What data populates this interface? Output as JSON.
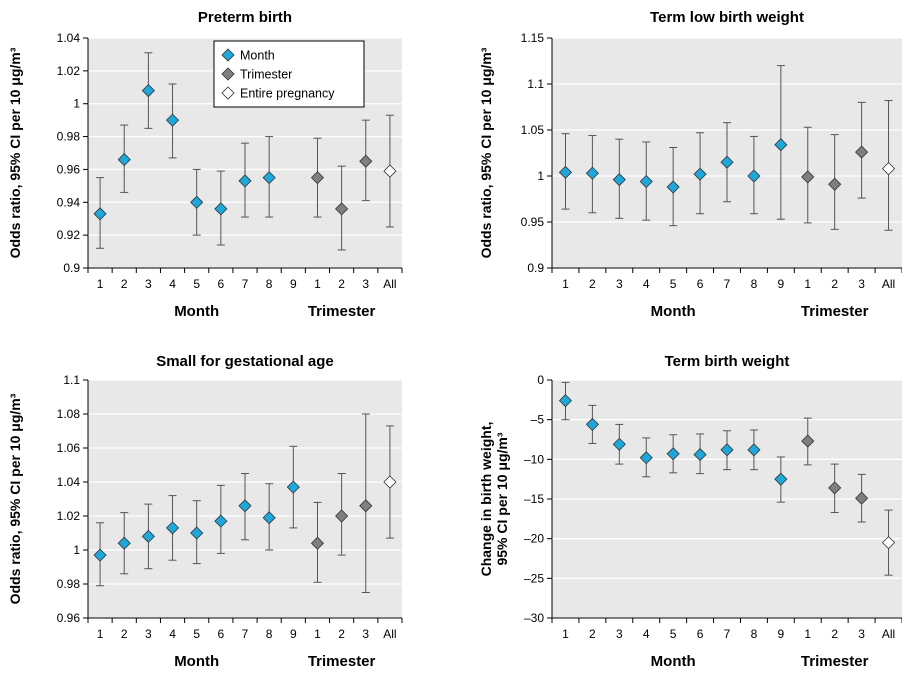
{
  "chart_data": [
    {
      "type": "scatter",
      "title": "Preterm birth",
      "ylabel": [
        "Odds ratio, 95% CI per 10 μg/m³"
      ],
      "ylim": [
        0.9,
        1.04
      ],
      "yticks": [
        0.9,
        0.92,
        0.94,
        0.96,
        0.98,
        1,
        1.02,
        1.04
      ],
      "ytick_labels": [
        "0.9",
        "0.92",
        "0.94",
        "0.96",
        "0.98",
        "1",
        "1.02",
        "1.04"
      ],
      "categories": [
        "1",
        "2",
        "3",
        "4",
        "5",
        "6",
        "7",
        "8",
        "9",
        "1",
        "2",
        "3",
        "All"
      ],
      "groups": [
        {
          "label": "Month",
          "from": 0,
          "to": 8
        },
        {
          "label": "Trimester",
          "from": 9,
          "to": 11
        }
      ],
      "legend": {
        "position": "top-center",
        "entries": [
          "Month",
          "Trimester",
          "Entire pregnancy"
        ]
      },
      "series": [
        {
          "name": "Month",
          "color": "#1fa7d9",
          "points": [
            {
              "i": 0,
              "y": 0.933,
              "lo": 0.912,
              "hi": 0.955
            },
            {
              "i": 1,
              "y": 0.966,
              "lo": 0.946,
              "hi": 0.987
            },
            {
              "i": 2,
              "y": 1.008,
              "lo": 0.985,
              "hi": 1.031
            },
            {
              "i": 3,
              "y": 0.99,
              "lo": 0.967,
              "hi": 1.012
            },
            {
              "i": 4,
              "y": 0.94,
              "lo": 0.92,
              "hi": 0.96
            },
            {
              "i": 5,
              "y": 0.936,
              "lo": 0.914,
              "hi": 0.959
            },
            {
              "i": 6,
              "y": 0.953,
              "lo": 0.931,
              "hi": 0.976
            },
            {
              "i": 7,
              "y": 0.955,
              "lo": 0.931,
              "hi": 0.98
            }
          ]
        },
        {
          "name": "Trimester",
          "color": "#7f7f7f",
          "points": [
            {
              "i": 9,
              "y": 0.955,
              "lo": 0.931,
              "hi": 0.979
            },
            {
              "i": 10,
              "y": 0.936,
              "lo": 0.911,
              "hi": 0.962
            },
            {
              "i": 11,
              "y": 0.965,
              "lo": 0.941,
              "hi": 0.99
            }
          ]
        },
        {
          "name": "Entire pregnancy",
          "color": "#ffffff",
          "points": [
            {
              "i": 12,
              "y": 0.959,
              "lo": 0.925,
              "hi": 0.993
            }
          ]
        }
      ]
    },
    {
      "type": "scatter",
      "title": "Term low birth weight",
      "ylabel": [
        "Odds ratio, 95% CI per 10 μg/m³"
      ],
      "ylim": [
        0.9,
        1.15
      ],
      "yticks": [
        0.9,
        0.95,
        1,
        1.05,
        1.1,
        1.15
      ],
      "ytick_labels": [
        "0.9",
        "0.95",
        "1",
        "1.05",
        "1.1",
        "1.15"
      ],
      "categories": [
        "1",
        "2",
        "3",
        "4",
        "5",
        "6",
        "7",
        "8",
        "9",
        "1",
        "2",
        "3",
        "All"
      ],
      "groups": [
        {
          "label": "Month",
          "from": 0,
          "to": 8
        },
        {
          "label": "Trimester",
          "from": 9,
          "to": 11
        }
      ],
      "series": [
        {
          "name": "Month",
          "color": "#1fa7d9",
          "points": [
            {
              "i": 0,
              "y": 1.004,
              "lo": 0.964,
              "hi": 1.046
            },
            {
              "i": 1,
              "y": 1.003,
              "lo": 0.96,
              "hi": 1.044
            },
            {
              "i": 2,
              "y": 0.996,
              "lo": 0.954,
              "hi": 1.04
            },
            {
              "i": 3,
              "y": 0.994,
              "lo": 0.952,
              "hi": 1.037
            },
            {
              "i": 4,
              "y": 0.988,
              "lo": 0.946,
              "hi": 1.031
            },
            {
              "i": 5,
              "y": 1.002,
              "lo": 0.959,
              "hi": 1.047
            },
            {
              "i": 6,
              "y": 1.015,
              "lo": 0.972,
              "hi": 1.058
            },
            {
              "i": 7,
              "y": 1.0,
              "lo": 0.959,
              "hi": 1.043
            },
            {
              "i": 8,
              "y": 1.034,
              "lo": 0.953,
              "hi": 1.12
            }
          ]
        },
        {
          "name": "Trimester",
          "color": "#7f7f7f",
          "points": [
            {
              "i": 9,
              "y": 0.999,
              "lo": 0.949,
              "hi": 1.053
            },
            {
              "i": 10,
              "y": 0.991,
              "lo": 0.942,
              "hi": 1.045
            },
            {
              "i": 11,
              "y": 1.026,
              "lo": 0.976,
              "hi": 1.08
            }
          ]
        },
        {
          "name": "Entire pregnancy",
          "color": "#ffffff",
          "points": [
            {
              "i": 12,
              "y": 1.008,
              "lo": 0.941,
              "hi": 1.082
            }
          ]
        }
      ]
    },
    {
      "type": "scatter",
      "title": "Small for gestational age",
      "ylabel": [
        "Odds ratio, 95% CI per 10 μg/m³"
      ],
      "ylim": [
        0.96,
        1.1
      ],
      "yticks": [
        0.96,
        0.98,
        1,
        1.02,
        1.04,
        1.06,
        1.08,
        1.1
      ],
      "ytick_labels": [
        "0.96",
        "0.98",
        "1",
        "1.02",
        "1.04",
        "1.06",
        "1.08",
        "1.1"
      ],
      "categories": [
        "1",
        "2",
        "3",
        "4",
        "5",
        "6",
        "7",
        "8",
        "9",
        "1",
        "2",
        "3",
        "All"
      ],
      "groups": [
        {
          "label": "Month",
          "from": 0,
          "to": 8
        },
        {
          "label": "Trimester",
          "from": 9,
          "to": 11
        }
      ],
      "series": [
        {
          "name": "Month",
          "color": "#1fa7d9",
          "points": [
            {
              "i": 0,
              "y": 0.997,
              "lo": 0.979,
              "hi": 1.016
            },
            {
              "i": 1,
              "y": 1.004,
              "lo": 0.986,
              "hi": 1.022
            },
            {
              "i": 2,
              "y": 1.008,
              "lo": 0.989,
              "hi": 1.027
            },
            {
              "i": 3,
              "y": 1.013,
              "lo": 0.994,
              "hi": 1.032
            },
            {
              "i": 4,
              "y": 1.01,
              "lo": 0.992,
              "hi": 1.029
            },
            {
              "i": 5,
              "y": 1.017,
              "lo": 0.998,
              "hi": 1.038
            },
            {
              "i": 6,
              "y": 1.026,
              "lo": 1.006,
              "hi": 1.045
            },
            {
              "i": 7,
              "y": 1.019,
              "lo": 1.0,
              "hi": 1.039
            },
            {
              "i": 8,
              "y": 1.037,
              "lo": 1.013,
              "hi": 1.061
            }
          ]
        },
        {
          "name": "Trimester",
          "color": "#7f7f7f",
          "points": [
            {
              "i": 9,
              "y": 1.004,
              "lo": 0.981,
              "hi": 1.028
            },
            {
              "i": 10,
              "y": 1.02,
              "lo": 0.997,
              "hi": 1.045
            },
            {
              "i": 11,
              "y": 1.026,
              "lo": 0.975,
              "hi": 1.08
            }
          ]
        },
        {
          "name": "Entire pregnancy",
          "color": "#ffffff",
          "points": [
            {
              "i": 12,
              "y": 1.04,
              "lo": 1.007,
              "hi": 1.073
            }
          ]
        }
      ]
    },
    {
      "type": "scatter",
      "title": "Term birth weight",
      "ylabel": [
        "Change in birth weight,",
        "95% CI per 10 μg/m³"
      ],
      "ylim": [
        -30,
        0
      ],
      "yticks": [
        -30,
        -25,
        -20,
        -15,
        -10,
        -5,
        0
      ],
      "ytick_labels": [
        "–30",
        "–25",
        "–20",
        "–15",
        "–10",
        "–5",
        "0"
      ],
      "categories": [
        "1",
        "2",
        "3",
        "4",
        "5",
        "6",
        "7",
        "8",
        "9",
        "1",
        "2",
        "3",
        "All"
      ],
      "groups": [
        {
          "label": "Month",
          "from": 0,
          "to": 8
        },
        {
          "label": "Trimester",
          "from": 9,
          "to": 11
        }
      ],
      "series": [
        {
          "name": "Month",
          "color": "#1fa7d9",
          "points": [
            {
              "i": 0,
              "y": -2.6,
              "lo": -5.0,
              "hi": -0.3
            },
            {
              "i": 1,
              "y": -5.6,
              "lo": -8.0,
              "hi": -3.2
            },
            {
              "i": 2,
              "y": -8.1,
              "lo": -10.6,
              "hi": -5.6
            },
            {
              "i": 3,
              "y": -9.8,
              "lo": -12.2,
              "hi": -7.3
            },
            {
              "i": 4,
              "y": -9.3,
              "lo": -11.7,
              "hi": -6.9
            },
            {
              "i": 5,
              "y": -9.4,
              "lo": -11.8,
              "hi": -6.8
            },
            {
              "i": 6,
              "y": -8.8,
              "lo": -11.3,
              "hi": -6.4
            },
            {
              "i": 7,
              "y": -8.8,
              "lo": -11.3,
              "hi": -6.3
            },
            {
              "i": 8,
              "y": -12.5,
              "lo": -15.4,
              "hi": -9.7
            }
          ]
        },
        {
          "name": "Trimester",
          "color": "#7f7f7f",
          "points": [
            {
              "i": 9,
              "y": -7.7,
              "lo": -10.7,
              "hi": -4.8
            },
            {
              "i": 10,
              "y": -13.6,
              "lo": -16.7,
              "hi": -10.6
            },
            {
              "i": 11,
              "y": -14.9,
              "lo": -17.9,
              "hi": -11.9
            }
          ]
        },
        {
          "name": "Entire pregnancy",
          "color": "#ffffff",
          "points": [
            {
              "i": 12,
              "y": -20.5,
              "lo": -24.6,
              "hi": -16.4
            }
          ]
        }
      ]
    }
  ]
}
